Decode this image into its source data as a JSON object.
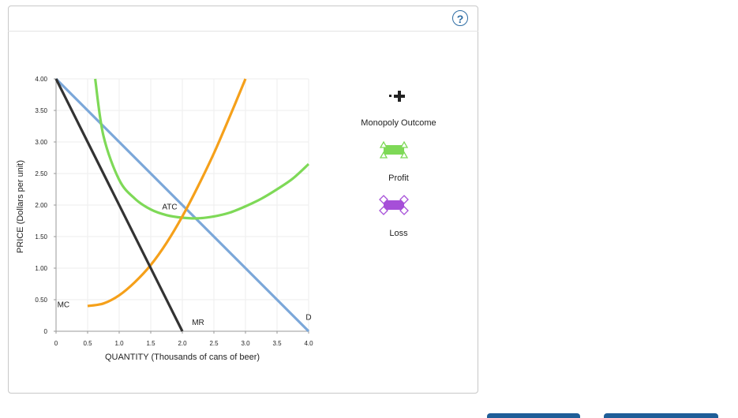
{
  "help": {
    "symbol": "?"
  },
  "legend": {
    "items": [
      {
        "id": "monopoly-outcome",
        "label": "Monopoly Outcome",
        "icon": "plus-point-icon",
        "color": "#222222"
      },
      {
        "id": "profit",
        "label": "Profit",
        "icon": "green-rectangle-icon",
        "color": "#7ed957"
      },
      {
        "id": "loss",
        "label": "Loss",
        "icon": "purple-rectangle-icon",
        "color": "#a64fd8"
      }
    ]
  },
  "chart_data": {
    "type": "line",
    "xlabel": "QUANTITY (Thousands of cans of beer)",
    "ylabel": "PRICE (Dollars per unit)",
    "xlim": [
      0,
      4
    ],
    "ylim": [
      0,
      4
    ],
    "x_ticks": [
      "0",
      "0.5",
      "1.0",
      "1.5",
      "2.0",
      "2.5",
      "3.0",
      "3.5",
      "4.0"
    ],
    "y_ticks": [
      "0",
      "0.50",
      "1.00",
      "1.50",
      "2.00",
      "2.50",
      "3.00",
      "3.50",
      "4.00"
    ],
    "grid": true,
    "series": [
      {
        "name": "D",
        "color": "#7ba7d9",
        "x": [
          0,
          4.0
        ],
        "y": [
          4.0,
          0
        ]
      },
      {
        "name": "MR",
        "color": "#333333",
        "x": [
          0,
          2.0
        ],
        "y": [
          4.0,
          0
        ]
      },
      {
        "name": "MC",
        "color": "#f5a01a",
        "x": [
          0.5,
          0.75,
          1.0,
          1.25,
          1.5,
          1.75,
          2.0,
          2.25,
          2.5,
          2.75,
          3.0,
          3.25
        ],
        "y": [
          0.4,
          0.44,
          0.57,
          0.78,
          1.05,
          1.4,
          1.82,
          2.3,
          2.82,
          3.4,
          4.0,
          4.0
        ]
      },
      {
        "name": "ATC",
        "color": "#7ed957",
        "x": [
          0.62,
          0.75,
          1.0,
          1.25,
          1.5,
          1.75,
          2.0,
          2.25,
          2.5,
          2.75,
          3.0,
          3.25,
          3.5,
          3.75,
          4.0
        ],
        "y": [
          4.0,
          3.1,
          2.4,
          2.1,
          1.93,
          1.84,
          1.8,
          1.79,
          1.82,
          1.88,
          1.98,
          2.1,
          2.25,
          2.42,
          2.65
        ]
      }
    ],
    "labels": [
      {
        "text": "ATC"
      },
      {
        "text": "MC"
      },
      {
        "text": "MR"
      },
      {
        "text": "D"
      }
    ]
  }
}
